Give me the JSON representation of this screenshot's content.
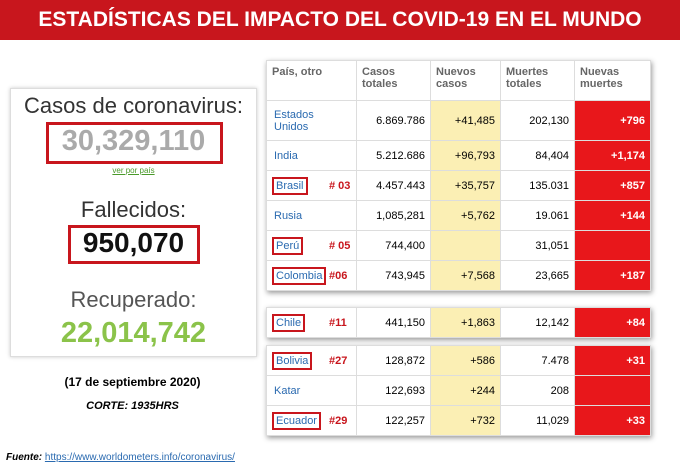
{
  "header": {
    "title": "ESTADÍSTICAS DEL IMPACTO DEL COVID-19 EN EL MUNDO"
  },
  "summary": {
    "cases_label": "Casos de coronavirus:",
    "cases_value": "30,329,110",
    "link": "ver por país",
    "deaths_label": "Fallecidos:",
    "deaths_value": "950,070",
    "recovered_label": "Recuperado:",
    "recovered_value": "22,014,742"
  },
  "date": "(17 de septiembre 2020)",
  "cutoff": "CORTE: 1935HRS",
  "source": {
    "label": "Fuente:",
    "url": "https://www.worldometers.info/coronavirus/"
  },
  "table": {
    "headers": [
      "País, otro",
      "Casos totales",
      "Nuevos casos",
      "Muertes totales",
      "Nuevas muertes"
    ],
    "groups": [
      [
        {
          "cells": [
            "Estados Unidos",
            "6.869.786",
            "+41,485",
            "202,130",
            "+796"
          ],
          "rank": null
        },
        {
          "cells": [
            "India",
            "5.212.686",
            "+96,793",
            "84,404",
            "+1,174"
          ],
          "rank": null
        },
        {
          "cells": [
            "Brasil",
            "4.457.443",
            "+35,757",
            "135.031",
            "+857"
          ],
          "rank": "# 03"
        },
        {
          "cells": [
            "Rusia",
            "1,085,281",
            "+5,762",
            "19.061",
            "+144"
          ],
          "rank": null
        },
        {
          "cells": [
            "Perú",
            "744,400",
            null,
            "31,051",
            null
          ],
          "rank": "# 05"
        },
        {
          "cells": [
            "Colombia",
            "743,945",
            "+7,568",
            "23,665",
            "+187"
          ],
          "rank": "#06"
        }
      ],
      [
        {
          "cells": [
            "Chile",
            "441,150",
            "+1,863",
            "12,142",
            "+84"
          ],
          "rank": "#11"
        }
      ],
      [
        {
          "cells": [
            "Bolivia",
            "128,872",
            "+586",
            "7.478",
            "+31"
          ],
          "rank": "#27"
        },
        {
          "cells": [
            "Katar",
            "122,693",
            "+244",
            "208",
            null
          ],
          "rank": null
        },
        {
          "cells": [
            "Ecuador",
            "122,257",
            "+732",
            "11,029",
            "+33"
          ],
          "rank": "#29"
        }
      ]
    ]
  }
}
